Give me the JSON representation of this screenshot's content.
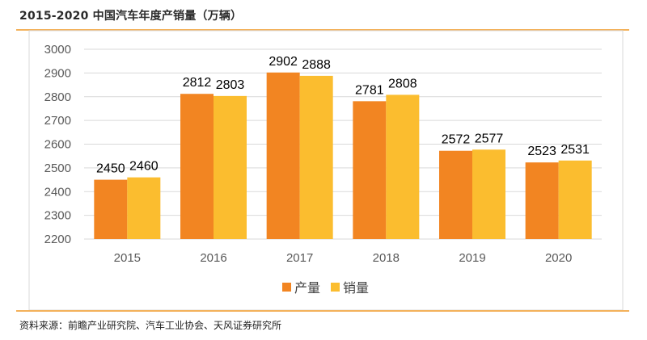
{
  "header": {
    "title": "2015-2020 中国汽车年度产销量（万辆）"
  },
  "footer": {
    "source": "资料来源：前瞻产业研究院、汽车工业协会、天风证券研究所"
  },
  "colors": {
    "production": "#f28522",
    "sales": "#fbbd2f",
    "rule": "#f3b15a",
    "grid": "#d9d9d9"
  },
  "chart_data": {
    "type": "bar",
    "title": "2015-2020 中国汽车年度产销量（万辆）",
    "xlabel": "",
    "ylabel": "",
    "categories": [
      "2015",
      "2016",
      "2017",
      "2018",
      "2019",
      "2020"
    ],
    "series": [
      {
        "name": "产量",
        "values": [
          2450,
          2812,
          2902,
          2781,
          2572,
          2523
        ]
      },
      {
        "name": "销量",
        "values": [
          2460,
          2803,
          2888,
          2808,
          2577,
          2531
        ]
      }
    ],
    "ylim": [
      2200,
      3000
    ],
    "yticks": [
      "2200",
      "2300",
      "2400",
      "2500",
      "2600",
      "2700",
      "2800",
      "2900",
      "3000"
    ],
    "grid": true,
    "legend": "bottom"
  }
}
